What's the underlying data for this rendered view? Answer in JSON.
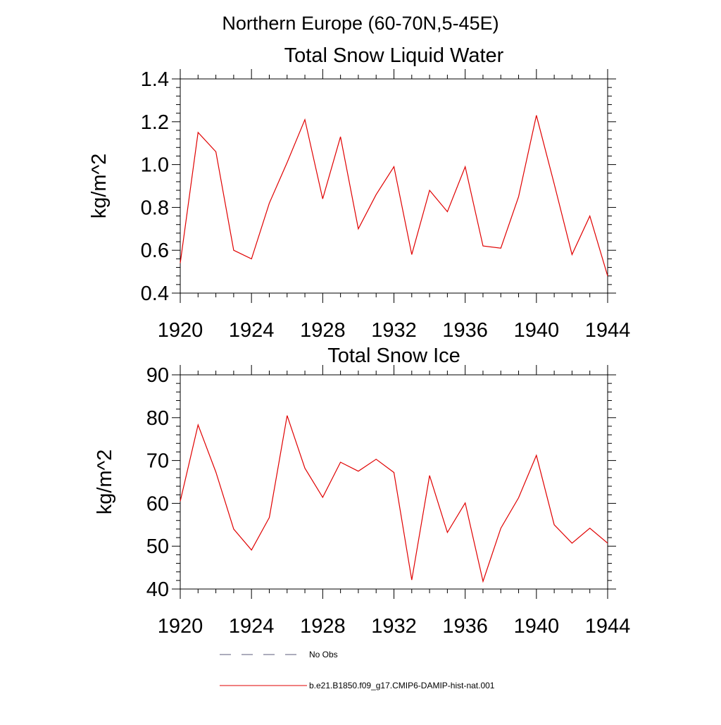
{
  "page_title": "Northern Europe (60-70N,5-45E)",
  "colors": {
    "series": "#e00000",
    "no_obs": "#5a5a78",
    "axis": "#000000"
  },
  "legend": {
    "entries": [
      {
        "label": "No Obs",
        "style": "dashed"
      },
      {
        "label": "b.e21.B1850.f09_g17.CMIP6-DAMIP-hist-nat.001",
        "style": "solid"
      }
    ]
  },
  "chart_data": [
    {
      "type": "line",
      "title": "Total Snow Liquid Water",
      "xlabel": "",
      "ylabel": "kg/m^2",
      "xlim": [
        1920,
        1944
      ],
      "ylim": [
        0.4,
        1.4
      ],
      "xticks": [
        1920,
        1924,
        1928,
        1932,
        1936,
        1940,
        1944
      ],
      "ytick_labels": [
        "0.4",
        "0.6",
        "0.8",
        "1.0",
        "1.2",
        "1.4"
      ],
      "grid": false,
      "series": [
        {
          "name": "b.e21.B1850.f09_g17.CMIP6-DAMIP-hist-nat.001",
          "x": [
            1920,
            1921,
            1922,
            1923,
            1924,
            1925,
            1926,
            1927,
            1928,
            1929,
            1930,
            1931,
            1932,
            1933,
            1934,
            1935,
            1936,
            1937,
            1938,
            1939,
            1940,
            1941,
            1942,
            1943,
            1944
          ],
          "y": [
            0.54,
            1.15,
            1.06,
            0.6,
            0.56,
            0.82,
            1.01,
            1.21,
            0.84,
            1.13,
            0.7,
            0.86,
            0.99,
            0.58,
            0.88,
            0.78,
            0.99,
            0.62,
            0.61,
            0.85,
            1.23,
            0.91,
            0.58,
            0.76,
            0.48
          ]
        }
      ]
    },
    {
      "type": "line",
      "title": "Total Snow Ice",
      "xlabel": "",
      "ylabel": "kg/m^2",
      "xlim": [
        1920,
        1944
      ],
      "ylim": [
        40,
        90
      ],
      "xticks": [
        1920,
        1924,
        1928,
        1932,
        1936,
        1940,
        1944
      ],
      "ytick_labels": [
        "40",
        "50",
        "60",
        "70",
        "80",
        "90"
      ],
      "grid": false,
      "series": [
        {
          "name": "b.e21.B1850.f09_g17.CMIP6-DAMIP-hist-nat.001",
          "x": [
            1920,
            1921,
            1922,
            1923,
            1924,
            1925,
            1926,
            1927,
            1928,
            1929,
            1930,
            1931,
            1932,
            1933,
            1934,
            1935,
            1936,
            1937,
            1938,
            1939,
            1940,
            1941,
            1942,
            1943,
            1944
          ],
          "y": [
            60.5,
            78.3,
            67.3,
            54.0,
            49.1,
            56.7,
            80.5,
            68.2,
            61.4,
            69.6,
            67.5,
            70.3,
            67.2,
            42.1,
            66.5,
            53.2,
            60.1,
            41.8,
            54.2,
            61.3,
            71.2,
            55.0,
            50.7,
            54.2,
            50.7
          ]
        }
      ]
    }
  ]
}
